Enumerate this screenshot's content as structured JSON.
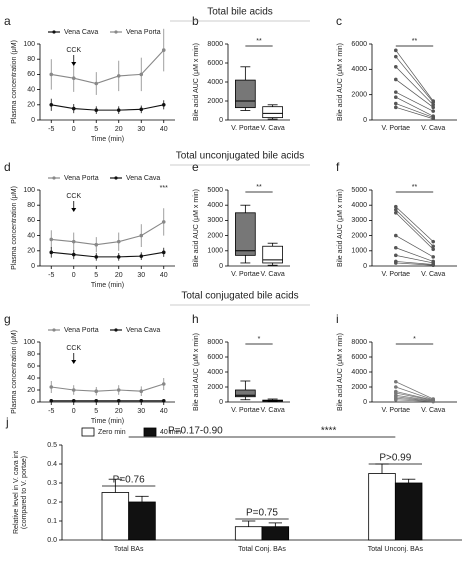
{
  "chart_data": [
    {
      "type": "line",
      "panel": "a",
      "categories": [
        "-5",
        "0",
        "5",
        "20",
        "30",
        "40"
      ],
      "xlabel": "Time  (min)",
      "ylabel": "Plasma concentration (μM)",
      "ylim": [
        0,
        100
      ],
      "yticks": [
        0,
        20,
        40,
        60,
        80,
        100
      ],
      "annotation": "CCK",
      "series": [
        {
          "name": "Vena Cava",
          "color": "#111111",
          "values": [
            20,
            15,
            13,
            13,
            14,
            20
          ],
          "errors": [
            8,
            6,
            5,
            5,
            5,
            6
          ]
        },
        {
          "name": "Vena Porta",
          "color": "#888888",
          "values": [
            60,
            55,
            48,
            58,
            60,
            92
          ],
          "errors": [
            20,
            18,
            15,
            20,
            22,
            28
          ]
        }
      ]
    },
    {
      "type": "box",
      "panel": "b",
      "title": "Total bile acids",
      "categories": [
        "V. Portae",
        "V. Cava"
      ],
      "ylabel": "Bile acid AUC (μM x min)",
      "ylim": [
        0,
        8000
      ],
      "yticks": [
        0,
        2000,
        4000,
        6000,
        8000
      ],
      "significance": "**",
      "color": "#777777",
      "boxes": [
        {
          "min": 1000,
          "q1": 1300,
          "median": 2000,
          "q3": 4200,
          "max": 5600
        },
        {
          "min": 100,
          "q1": 250,
          "median": 700,
          "q3": 1400,
          "max": 1600
        }
      ]
    },
    {
      "type": "paired",
      "panel": "c",
      "categories": [
        "V. Portae",
        "V. Cava"
      ],
      "ylabel": "Bile acid AUC (μM x min)",
      "ylim": [
        0,
        6000
      ],
      "yticks": [
        0,
        2000,
        4000,
        6000
      ],
      "significance": "**",
      "color": "#555555",
      "pairs": [
        [
          5500,
          1500
        ],
        [
          5000,
          1400
        ],
        [
          4200,
          1200
        ],
        [
          3200,
          1000
        ],
        [
          2200,
          700
        ],
        [
          1800,
          300
        ],
        [
          1300,
          200
        ],
        [
          1000,
          100
        ]
      ]
    },
    {
      "type": "line",
      "panel": "d",
      "title": "Total unconjugated bile acids",
      "categories": [
        "-5",
        "0",
        "5",
        "20",
        "30",
        "40"
      ],
      "xlabel": "Time (min)",
      "ylabel": "Plasma concentration (μM)",
      "ylim": [
        0,
        100
      ],
      "yticks": [
        0,
        20,
        40,
        60,
        80,
        100
      ],
      "annotation": "CCK",
      "significance": "***",
      "series": [
        {
          "name": "Vena Porta",
          "color": "#888888",
          "values": [
            35,
            32,
            28,
            32,
            40,
            58
          ],
          "errors": [
            12,
            12,
            10,
            12,
            15,
            18
          ]
        },
        {
          "name": "Vena Cava",
          "color": "#111111",
          "values": [
            18,
            15,
            12,
            12,
            13,
            18
          ],
          "errors": [
            7,
            6,
            5,
            5,
            5,
            6
          ]
        }
      ]
    },
    {
      "type": "box",
      "panel": "e",
      "categories": [
        "V. Portae",
        "V. Cava"
      ],
      "ylabel": "Bile acid AUC (μM x min)",
      "ylim": [
        0,
        5000
      ],
      "yticks": [
        0,
        1000,
        2000,
        3000,
        4000,
        5000
      ],
      "significance": "**",
      "color": "#777777",
      "boxes": [
        {
          "min": 200,
          "q1": 700,
          "median": 1000,
          "q3": 3500,
          "max": 4000
        },
        {
          "min": 50,
          "q1": 200,
          "median": 400,
          "q3": 1300,
          "max": 1500
        }
      ]
    },
    {
      "type": "paired",
      "panel": "f",
      "categories": [
        "V. Portae",
        "V. Cava"
      ],
      "ylabel": "Bile acid AUC (μM x min)",
      "ylim": [
        0,
        5000
      ],
      "yticks": [
        0,
        1000,
        2000,
        3000,
        4000,
        5000
      ],
      "significance": "**",
      "color": "#555555",
      "pairs": [
        [
          3900,
          1600
        ],
        [
          3700,
          1300
        ],
        [
          3500,
          1100
        ],
        [
          2000,
          600
        ],
        [
          1200,
          300
        ],
        [
          700,
          200
        ],
        [
          300,
          100
        ],
        [
          200,
          50
        ]
      ]
    },
    {
      "type": "line",
      "panel": "g",
      "title": "Total conjugated bile acids",
      "categories": [
        "-5",
        "0",
        "5",
        "20",
        "30",
        "40"
      ],
      "xlabel": "Time (min)",
      "ylabel": "Plasma concentration (μM)",
      "ylim": [
        0,
        100
      ],
      "yticks": [
        0,
        20,
        40,
        60,
        80,
        100
      ],
      "annotation": "CCK",
      "series": [
        {
          "name": "Vena Porta",
          "color": "#888888",
          "values": [
            25,
            20,
            18,
            20,
            18,
            30
          ],
          "errors": [
            10,
            8,
            7,
            8,
            8,
            10
          ]
        },
        {
          "name": "Vena Cava",
          "color": "#111111",
          "values": [
            2,
            2,
            2,
            2,
            2,
            2
          ],
          "errors": [
            1,
            1,
            1,
            1,
            1,
            1
          ]
        }
      ]
    },
    {
      "type": "box",
      "panel": "h",
      "categories": [
        "V. Portae",
        "V. Cava"
      ],
      "ylabel": "Bile acid AUC (μM x min)",
      "ylim": [
        0,
        8000
      ],
      "yticks": [
        0,
        2000,
        4000,
        6000,
        8000
      ],
      "significance": "*",
      "color": "#777777",
      "boxes": [
        {
          "min": 300,
          "q1": 700,
          "median": 900,
          "q3": 1600,
          "max": 2800
        },
        {
          "min": 50,
          "q1": 100,
          "median": 150,
          "q3": 250,
          "max": 400
        }
      ]
    },
    {
      "type": "paired",
      "panel": "i",
      "categories": [
        "V. Portae",
        "V. Cava"
      ],
      "ylabel": "Bile acid AUC (μM x min)",
      "ylim": [
        0,
        8000
      ],
      "yticks": [
        0,
        2000,
        4000,
        6000,
        8000
      ],
      "significance": "*",
      "color": "#777777",
      "pairs": [
        [
          2700,
          400
        ],
        [
          2000,
          300
        ],
        [
          1400,
          250
        ],
        [
          1200,
          200
        ],
        [
          900,
          150
        ],
        [
          700,
          100
        ],
        [
          500,
          80
        ],
        [
          300,
          50
        ]
      ]
    },
    {
      "type": "groupbar",
      "panel": "j",
      "categories": [
        "Total BAs",
        "Total Conj. BAs",
        "Total Unconj. BAs"
      ],
      "ylabel": [
        "Relative level in V. cava int",
        "(compared to V. portae)"
      ],
      "ylim": [
        0,
        0.5
      ],
      "yticks": [
        {
          "value": 0,
          "label": "0.0"
        },
        0.1,
        0.2,
        0.3,
        0.4,
        0.5
      ],
      "annotations": [
        "P=0.76",
        "P=0.75",
        "P>0.99",
        "P=0.17-0.90",
        "****"
      ],
      "series": [
        {
          "name": "Zero min",
          "color": "#ffffff",
          "values": [
            0.25,
            0.07,
            0.35
          ],
          "errors": [
            0.07,
            0.03,
            0.05
          ]
        },
        {
          "name": "40 min",
          "color": "#111111",
          "values": [
            0.2,
            0.07,
            0.3
          ],
          "errors": [
            0.03,
            0.02,
            0.02
          ]
        }
      ]
    }
  ]
}
